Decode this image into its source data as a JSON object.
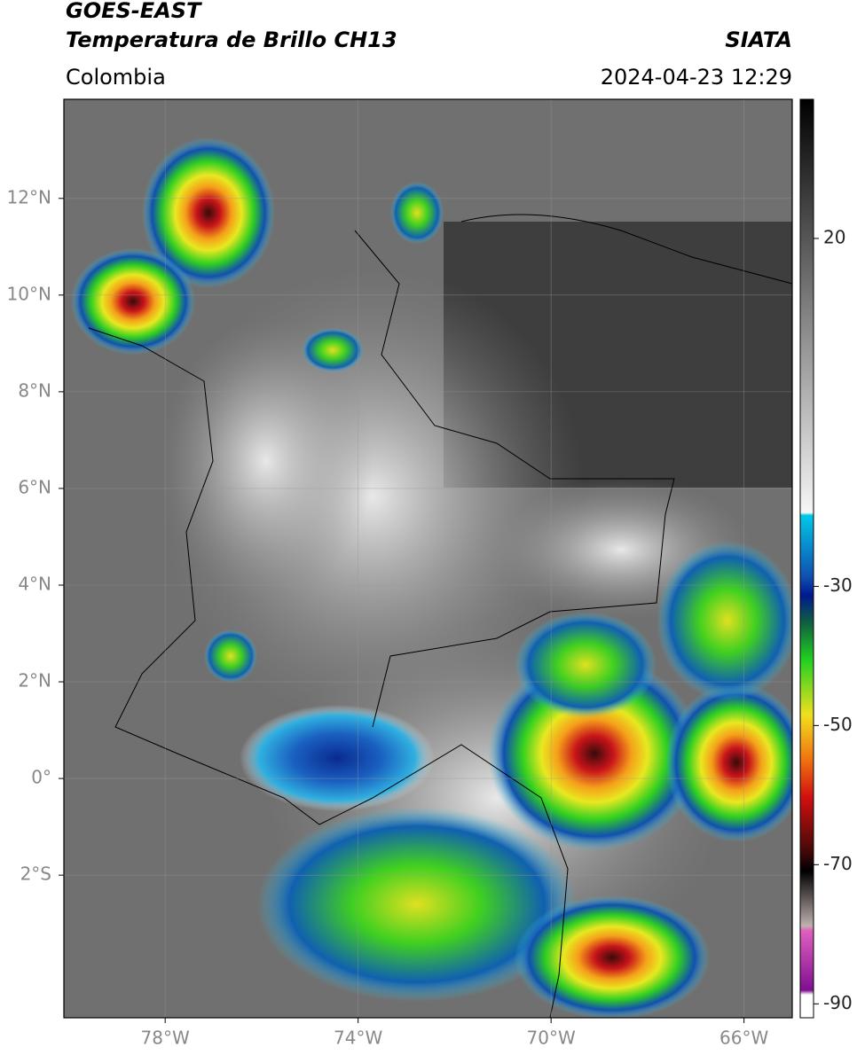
{
  "header": {
    "title": "GOES-EAST",
    "subtitle": "Temperatura de Brillo CH13",
    "source": "SIATA",
    "region": "Colombia",
    "datetime": "2024-04-23 12:29"
  },
  "map": {
    "xlim": [
      -80.1,
      -65
    ],
    "ylim": [
      -4.95,
      14.05
    ],
    "grid": true,
    "xticks": [
      {
        "value": -78,
        "label": "78°W"
      },
      {
        "value": -74,
        "label": "74°W"
      },
      {
        "value": -70,
        "label": "70°W"
      },
      {
        "value": -66,
        "label": "66°W"
      }
    ],
    "yticks": [
      {
        "value": 12,
        "label": "12°N"
      },
      {
        "value": 10,
        "label": "10°N"
      },
      {
        "value": 8,
        "label": "8°N"
      },
      {
        "value": 6,
        "label": "6°N"
      },
      {
        "value": 4,
        "label": "4°N"
      },
      {
        "value": 2,
        "label": "2°N"
      },
      {
        "value": 0,
        "label": "0°"
      },
      {
        "value": -2,
        "label": "2°S"
      }
    ]
  },
  "colorbar": {
    "lim": [
      -92,
      40
    ],
    "ticks": [
      20,
      -30,
      -50,
      -70,
      -90
    ]
  }
}
